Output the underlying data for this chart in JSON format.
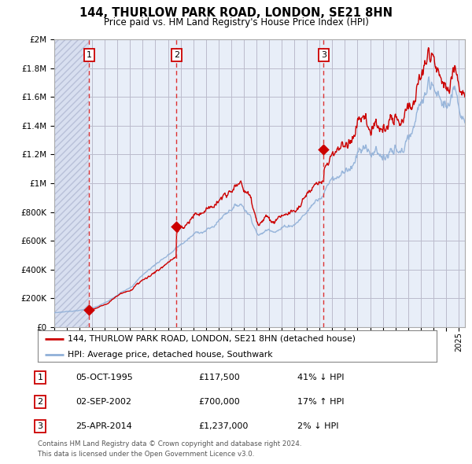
{
  "title": "144, THURLOW PARK ROAD, LONDON, SE21 8HN",
  "subtitle": "Price paid vs. HM Land Registry's House Price Index (HPI)",
  "ylabel_ticks": [
    "£0",
    "£200K",
    "£400K",
    "£600K",
    "£800K",
    "£1M",
    "£1.2M",
    "£1.4M",
    "£1.6M",
    "£1.8M",
    "£2M"
  ],
  "ytick_values": [
    0,
    200000,
    400000,
    600000,
    800000,
    1000000,
    1200000,
    1400000,
    1600000,
    1800000,
    2000000
  ],
  "ylim": [
    0,
    2000000
  ],
  "transactions": [
    {
      "date": 1995.75,
      "price": 117500,
      "label": "1"
    },
    {
      "date": 2002.67,
      "price": 700000,
      "label": "2"
    },
    {
      "date": 2014.32,
      "price": 1237000,
      "label": "3"
    }
  ],
  "legend_line1": "144, THURLOW PARK ROAD, LONDON, SE21 8HN (detached house)",
  "legend_line2": "HPI: Average price, detached house, Southwark",
  "table_rows": [
    {
      "num": "1",
      "date": "05-OCT-1995",
      "price": "£117,500",
      "hpi": "41% ↓ HPI"
    },
    {
      "num": "2",
      "date": "02-SEP-2002",
      "price": "£700,000",
      "hpi": "17% ↑ HPI"
    },
    {
      "num": "3",
      "date": "25-APR-2014",
      "price": "£1,237,000",
      "hpi": "2% ↓ HPI"
    }
  ],
  "footnote1": "Contains HM Land Registry data © Crown copyright and database right 2024.",
  "footnote2": "This data is licensed under the Open Government Licence v3.0.",
  "bg_color": "#e8eef8",
  "hatch_facecolor": "#d8dff0",
  "hatch_edgecolor": "#b8c0d8",
  "grid_color": "#bbbbcc",
  "hpi_color": "#90b0d8",
  "price_color": "#cc0000",
  "dashed_line_color": "#dd3333",
  "box_color": "#cc0000",
  "xstart": 1993.0,
  "xend": 2025.5
}
